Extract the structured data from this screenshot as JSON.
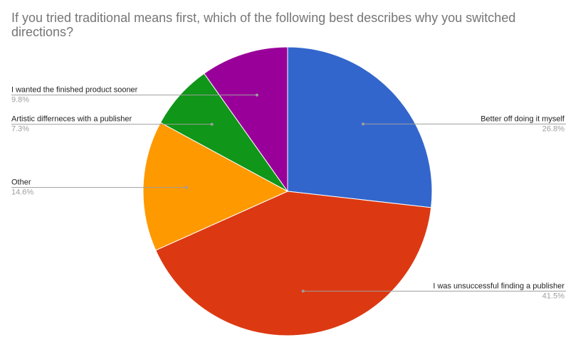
{
  "chart_data": {
    "type": "pie",
    "title": "If you tried traditional means first, which of the following best describes why you switched directions?",
    "slices": [
      {
        "label": "Better off doing it myself",
        "value": 26.8,
        "display": "26.8%",
        "color": "#3366cc",
        "side": "right"
      },
      {
        "label": "I was unsuccessful finding a publisher",
        "value": 41.5,
        "display": "41.5%",
        "color": "#dc3912",
        "side": "right"
      },
      {
        "label": "Other",
        "value": 14.6,
        "display": "14.6%",
        "color": "#ff9900",
        "side": "left"
      },
      {
        "label": "Artistic differneces with a publisher",
        "value": 7.3,
        "display": "7.3%",
        "color": "#109618",
        "side": "left"
      },
      {
        "label": "I wanted the finished product sooner",
        "value": 9.8,
        "display": "9.8%",
        "color": "#990099",
        "side": "left"
      }
    ],
    "start_angle": "12 o'clock",
    "direction": "clockwise",
    "legend": "labeled"
  }
}
